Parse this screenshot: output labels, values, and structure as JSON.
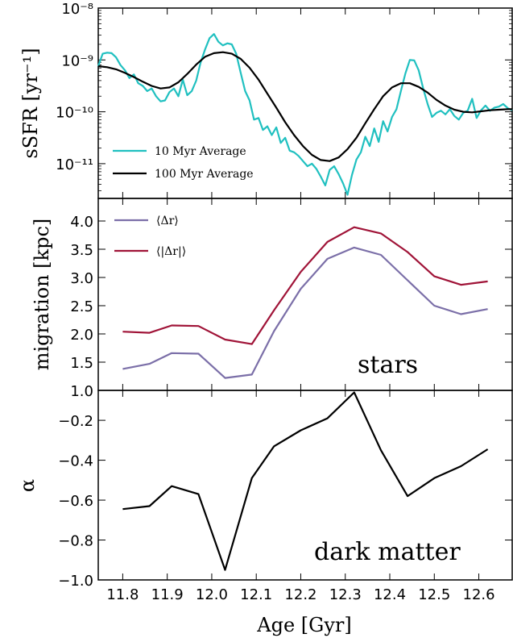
{
  "chart_data": [
    {
      "type": "line",
      "ylabel": "sSFR [yr⁻¹]",
      "xlim": [
        11.745,
        12.675
      ],
      "ylim_log10": [
        -11.67,
        -8.0
      ],
      "yscale": "log",
      "yticks": [
        {
          "value": -8,
          "label": "10⁻⁸"
        },
        {
          "value": -9,
          "label": "10⁻⁹"
        },
        {
          "value": -10,
          "label": "10⁻¹⁰"
        },
        {
          "value": -11,
          "label": "10⁻¹¹"
        }
      ],
      "legend": "bottom-left",
      "colors": {
        "10 Myr Average": "#20c0c0",
        "100 Myr Average": "#000000"
      },
      "series": [
        {
          "name": "10 Myr Average",
          "x": [
            11.745,
            11.755,
            11.765,
            11.775,
            11.785,
            11.795,
            11.805,
            11.815,
            11.825,
            11.835,
            11.845,
            11.855,
            11.865,
            11.875,
            11.885,
            11.895,
            11.905,
            11.915,
            11.925,
            11.935,
            11.945,
            11.955,
            11.965,
            11.975,
            11.985,
            11.995,
            12.005,
            12.015,
            12.025,
            12.035,
            12.045,
            12.055,
            12.065,
            12.075,
            12.085,
            12.095,
            12.105,
            12.115,
            12.125,
            12.135,
            12.145,
            12.155,
            12.165,
            12.175,
            12.185,
            12.195,
            12.205,
            12.215,
            12.225,
            12.235,
            12.245,
            12.255,
            12.265,
            12.275,
            12.285,
            12.295,
            12.305,
            12.315,
            12.325,
            12.335,
            12.345,
            12.355,
            12.365,
            12.375,
            12.385,
            12.395,
            12.405,
            12.415,
            12.425,
            12.435,
            12.445,
            12.455,
            12.465,
            12.475,
            12.485,
            12.495,
            12.505,
            12.515,
            12.525,
            12.535,
            12.545,
            12.555,
            12.565,
            12.575,
            12.585,
            12.595,
            12.605,
            12.615,
            12.625,
            12.635,
            12.645,
            12.655,
            12.665,
            12.675
          ],
          "y_log10": [
            -9.12,
            -8.88,
            -8.86,
            -8.87,
            -8.95,
            -9.1,
            -9.2,
            -9.35,
            -9.28,
            -9.45,
            -9.5,
            -9.6,
            -9.55,
            -9.7,
            -9.8,
            -9.78,
            -9.62,
            -9.55,
            -9.7,
            -9.38,
            -9.68,
            -9.6,
            -9.4,
            -9.05,
            -8.8,
            -8.58,
            -8.5,
            -8.65,
            -8.72,
            -8.68,
            -8.7,
            -8.88,
            -9.25,
            -9.6,
            -9.78,
            -10.15,
            -10.12,
            -10.35,
            -10.28,
            -10.45,
            -10.3,
            -10.6,
            -10.5,
            -10.75,
            -10.78,
            -10.85,
            -10.95,
            -11.05,
            -11.0,
            -11.1,
            -11.25,
            -11.42,
            -11.12,
            -11.05,
            -11.2,
            -11.38,
            -11.6,
            -11.22,
            -10.92,
            -10.78,
            -10.48,
            -10.66,
            -10.32,
            -10.58,
            -10.18,
            -10.38,
            -10.1,
            -9.95,
            -9.6,
            -9.26,
            -9.0,
            -9.01,
            -9.2,
            -9.55,
            -9.85,
            -10.1,
            -10.02,
            -9.98,
            -10.05,
            -9.95,
            -10.08,
            -10.15,
            -10.02,
            -9.98,
            -9.75,
            -10.12,
            -9.97,
            -9.88,
            -9.98,
            -9.92,
            -9.9,
            -9.85,
            -9.93,
            -9.97
          ]
        },
        {
          "name": "100 Myr Average",
          "x": [
            11.745,
            11.765,
            11.785,
            11.805,
            11.825,
            11.845,
            11.865,
            11.885,
            11.905,
            11.925,
            11.945,
            11.965,
            11.985,
            12.005,
            12.025,
            12.045,
            12.065,
            12.085,
            12.105,
            12.125,
            12.145,
            12.165,
            12.185,
            12.205,
            12.225,
            12.245,
            12.265,
            12.285,
            12.305,
            12.325,
            12.345,
            12.365,
            12.385,
            12.405,
            12.425,
            12.445,
            12.465,
            12.485,
            12.505,
            12.525,
            12.545,
            12.565,
            12.585,
            12.605,
            12.625,
            12.645,
            12.665,
            12.675
          ],
          "y_log10": [
            -9.12,
            -9.14,
            -9.18,
            -9.25,
            -9.33,
            -9.42,
            -9.5,
            -9.55,
            -9.53,
            -9.43,
            -9.27,
            -9.09,
            -8.94,
            -8.87,
            -8.85,
            -8.88,
            -8.98,
            -9.15,
            -9.38,
            -9.65,
            -9.92,
            -10.2,
            -10.45,
            -10.66,
            -10.83,
            -10.93,
            -10.95,
            -10.88,
            -10.72,
            -10.5,
            -10.22,
            -9.95,
            -9.7,
            -9.53,
            -9.45,
            -9.45,
            -9.52,
            -9.63,
            -9.77,
            -9.88,
            -9.96,
            -10.0,
            -10.01,
            -9.99,
            -9.97,
            -9.96,
            -9.95,
            -9.95
          ]
        }
      ]
    },
    {
      "type": "line",
      "ylabel": "migration [kpc]",
      "xlim": [
        11.745,
        12.675
      ],
      "ylim": [
        1.0,
        4.4
      ],
      "yticks": [
        "1.0",
        "1.5",
        "2.0",
        "2.5",
        "3.0",
        "3.5",
        "4.0"
      ],
      "legend": "top-left",
      "annotation": "stars",
      "colors": {
        "⟨Δr⟩": "#7b6fa8",
        "⟨|Δr|⟩": "#a01438"
      },
      "x": [
        11.8,
        11.86,
        11.91,
        11.97,
        12.03,
        12.09,
        12.14,
        12.2,
        12.26,
        12.32,
        12.38,
        12.44,
        12.5,
        12.56,
        12.62
      ],
      "series": [
        {
          "name": "⟨Δr⟩",
          "values": [
            1.38,
            1.47,
            1.66,
            1.65,
            1.22,
            1.28,
            2.05,
            2.8,
            3.33,
            3.53,
            3.4,
            2.95,
            2.5,
            2.35,
            2.44
          ]
        },
        {
          "name": "⟨|Δr|⟩",
          "values": [
            2.04,
            2.02,
            2.15,
            2.14,
            1.9,
            1.82,
            2.42,
            3.1,
            3.63,
            3.89,
            3.78,
            3.45,
            3.02,
            2.87,
            2.93
          ]
        }
      ]
    },
    {
      "type": "line",
      "ylabel": "α",
      "xlabel": "Age [Gyr]",
      "xlim": [
        11.745,
        12.675
      ],
      "ylim": [
        -1.0,
        -0.05
      ],
      "yticks": [
        "−1.0",
        "−0.8",
        "−0.6",
        "−0.4",
        "−0.2"
      ],
      "xticks": [
        "11.8",
        "11.9",
        "12.0",
        "12.1",
        "12.2",
        "12.3",
        "12.4",
        "12.5",
        "12.6"
      ],
      "annotation": "dark matter",
      "colors": {
        "alpha": "#000000"
      },
      "x": [
        11.8,
        11.86,
        11.91,
        11.97,
        12.03,
        12.09,
        12.14,
        12.2,
        12.26,
        12.32,
        12.38,
        12.44,
        12.5,
        12.56,
        12.62
      ],
      "series": [
        {
          "values": [
            -0.645,
            -0.63,
            -0.53,
            -0.57,
            -0.95,
            -0.49,
            -0.33,
            -0.25,
            -0.19,
            -0.06,
            -0.35,
            -0.58,
            -0.49,
            -0.43,
            -0.345
          ]
        }
      ]
    }
  ]
}
